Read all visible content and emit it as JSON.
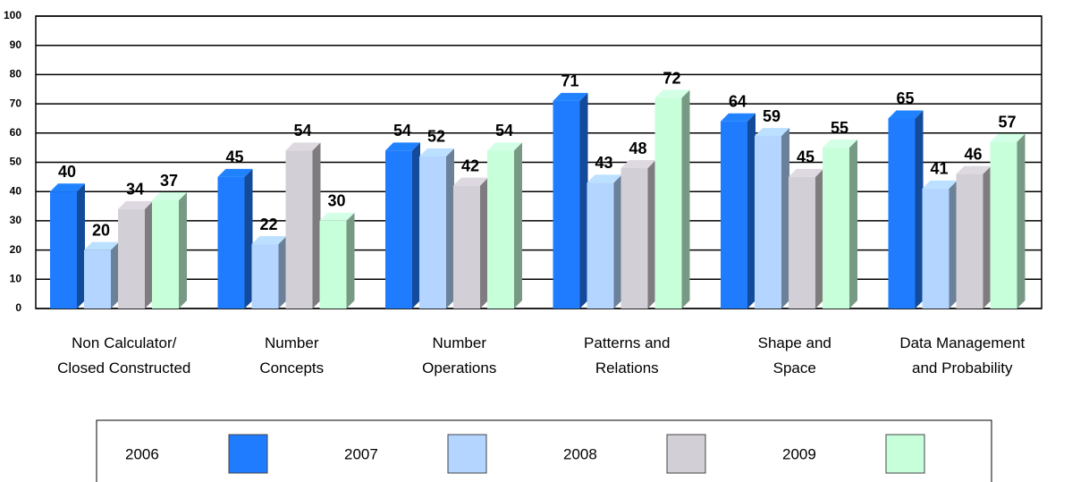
{
  "chart_data": {
    "type": "bar3d",
    "categories": [
      "Non Calculator/\nClosed Constructed",
      "Number\nConcepts",
      "Number\nOperations",
      "Patterns and\nRelations",
      "Shape and\nSpace",
      "Data Management\nand Probability"
    ],
    "series": [
      {
        "name": "2006",
        "color": "#1f7cff",
        "values": [
          40,
          45,
          54,
          71,
          64,
          65
        ]
      },
      {
        "name": "2007",
        "color": "#b3d5ff",
        "values": [
          20,
          22,
          52,
          43,
          59,
          41
        ]
      },
      {
        "name": "2008",
        "color": "#d3cfd6",
        "values": [
          34,
          54,
          42,
          48,
          45,
          46
        ]
      },
      {
        "name": "2009",
        "color": "#c8ffdb",
        "values": [
          37,
          30,
          54,
          72,
          55,
          57
        ]
      }
    ],
    "ylim": [
      0,
      100
    ],
    "yticks": [
      0,
      10,
      20,
      30,
      40,
      50,
      60,
      70,
      80,
      90,
      100
    ],
    "grid": true,
    "legend": "bottom"
  }
}
